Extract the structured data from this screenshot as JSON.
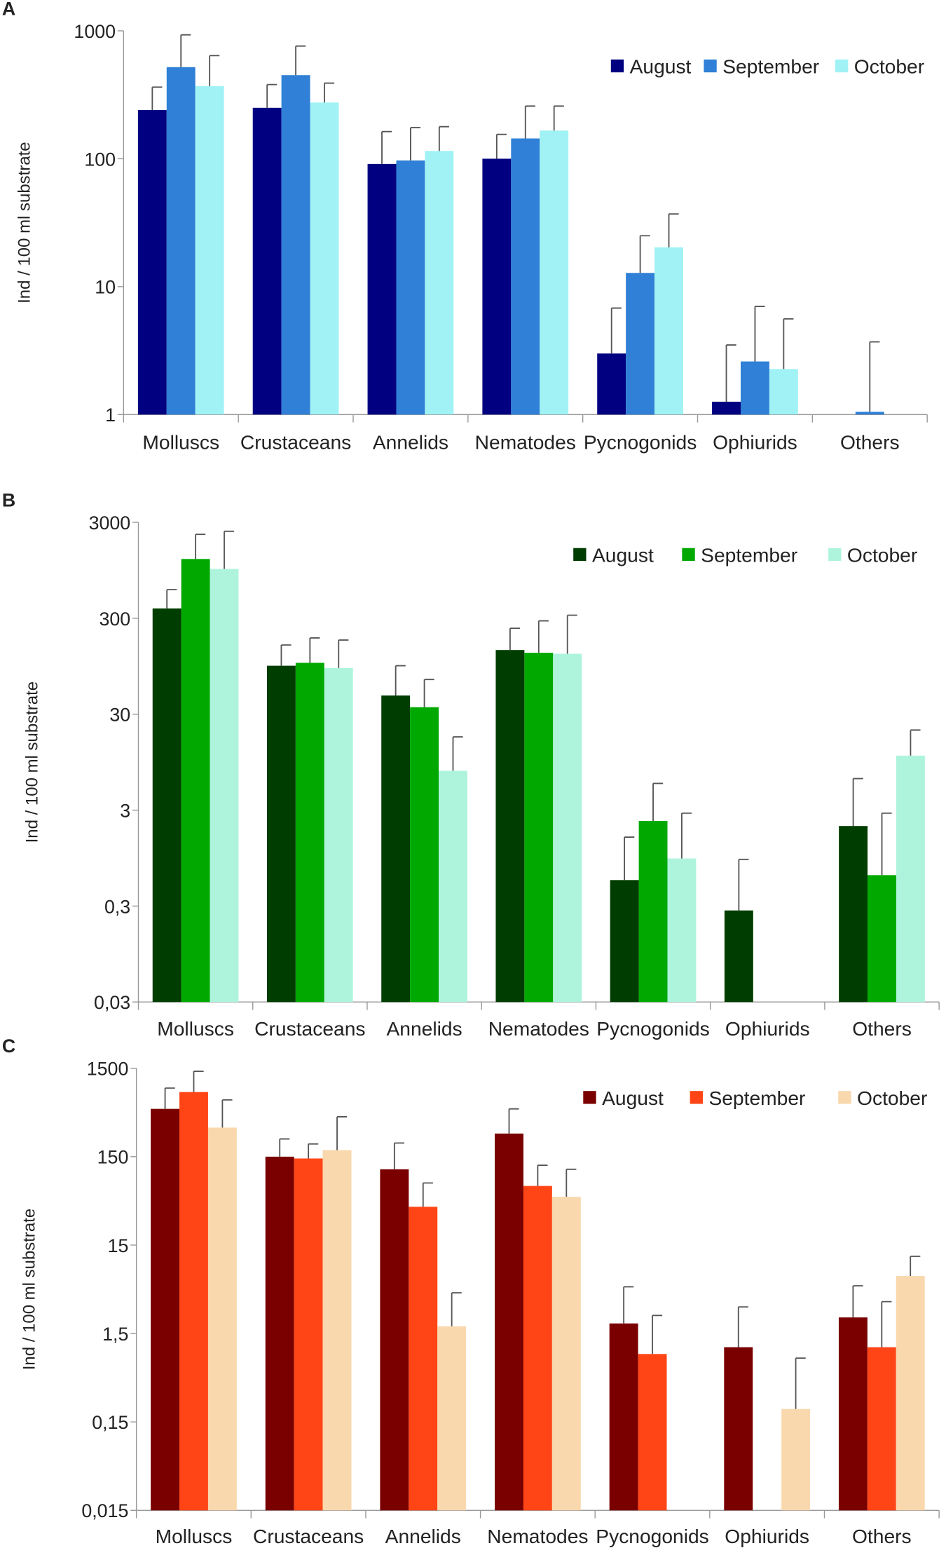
{
  "chart_data": [
    {
      "type": "bar",
      "panel": "A",
      "log_scale": true,
      "ylabel": "Ind / 100 ml substrate",
      "categories": [
        "Molluscs",
        "Crustaceans",
        "Annelids",
        "Nematodes",
        "Pycnogonids",
        "Ophiurids",
        "Others"
      ],
      "ylim": [
        1,
        1000
      ],
      "yticks": [
        1,
        10,
        100,
        1000
      ],
      "legend": "upper right",
      "series": [
        {
          "name": "August",
          "color": "#000080",
          "values": [
            240,
            250,
            91,
            100,
            3.0,
            1.26,
            null
          ],
          "errors": [
            123,
            130,
            72,
            55,
            3.8,
            2.24,
            null
          ]
        },
        {
          "name": "September",
          "color": "#2f80d6",
          "values": [
            520,
            450,
            97,
            144,
            12.8,
            2.6,
            1.05
          ],
          "errors": [
            410,
            310,
            78,
            114,
            12.2,
            4.4,
            2.65
          ]
        },
        {
          "name": "October",
          "color": "#a0f2f4",
          "values": [
            370,
            275,
            115,
            166,
            20.3,
            2.27,
            null
          ],
          "errors": [
            270,
            115,
            63,
            92,
            16.7,
            3.33,
            null
          ]
        }
      ]
    },
    {
      "type": "bar",
      "panel": "B",
      "log_scale": true,
      "ylabel": "Ind / 100 ml substrate",
      "categories": [
        "Molluscs",
        "Crustaceans",
        "Annelids",
        "Nematodes",
        "Pycnogonids",
        "Ophiurids",
        "Others"
      ],
      "ylim": [
        0.03,
        3000
      ],
      "yticks": [
        {
          "value": 0.03,
          "label": "0,03"
        },
        {
          "value": 0.3,
          "label": "0,3"
        },
        3,
        30,
        300,
        3000
      ],
      "legend": "upper right",
      "series": [
        {
          "name": "August",
          "color": "#003d00",
          "values": [
            380,
            96,
            47,
            140,
            0.56,
            0.27,
            2.05
          ],
          "errors": [
            217,
            62,
            49,
            96,
            1.01,
            0.65,
            4.35
          ]
        },
        {
          "name": "September",
          "color": "#00a800",
          "values": [
            1245,
            103,
            35.5,
            131,
            2.31,
            null,
            0.63
          ],
          "errors": [
            1005,
            84,
            33.5,
            151,
            3.39,
            null,
            2.16
          ]
        },
        {
          "name": "October",
          "color": "#aef4dc",
          "values": [
            980,
            91,
            7.7,
            128,
            0.94,
            null,
            11.1
          ],
          "errors": [
            1440,
            87,
            9.7,
            195,
            1.85,
            null,
            9.4
          ]
        }
      ]
    },
    {
      "type": "bar",
      "panel": "C",
      "log_scale": true,
      "ylabel": "Ind / 100 ml substrate",
      "categories": [
        "Molluscs",
        "Crustaceans",
        "Annelids",
        "Nematodes",
        "Pycnogonids",
        "Ophiurids",
        "Others"
      ],
      "ylim": [
        0.015,
        1500
      ],
      "yticks": [
        {
          "value": 0.015,
          "label": "0,015"
        },
        {
          "value": 0.15,
          "label": "0,15"
        },
        {
          "value": 1.5,
          "label": "1,5"
        },
        15,
        150,
        1500
      ],
      "legend": "upper right",
      "series": [
        {
          "name": "August",
          "color": "#7a0000",
          "values": [
            521,
            150,
            108,
            274,
            1.95,
            1.05,
            2.28
          ],
          "errors": [
            374,
            88,
            106,
            247,
            3.11,
            1.95,
            2.92
          ]
        },
        {
          "name": "September",
          "color": "#ff4515",
          "values": [
            807,
            143,
            40.7,
            70,
            0.88,
            null,
            1.05
          ],
          "errors": [
            580,
            66,
            34.9,
            50,
            1.52,
            null,
            2.39
          ]
        },
        {
          "name": "October",
          "color": "#f9d8ad",
          "values": [
            320,
            178,
            1.81,
            52.7,
            null,
            0.21,
            6.7
          ],
          "errors": [
            338,
            246,
            2.52,
            55.3,
            null,
            0.58,
            4.5
          ]
        }
      ]
    }
  ]
}
